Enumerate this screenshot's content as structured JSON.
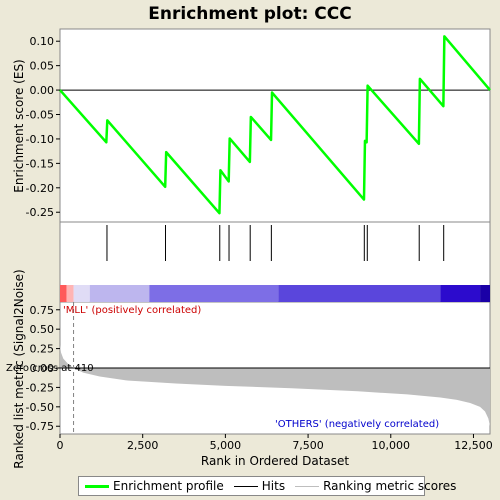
{
  "chart_data": {
    "type": "line",
    "title": "Enrichment plot: CCC",
    "xlabel": "Rank in Ordered Dataset",
    "top_ylabel": "Enrichment score (ES)",
    "bottom_ylabel": "Ranked list metric (Signal2Noise)",
    "x_range": [
      0,
      13000
    ],
    "x_ticks": [
      0,
      2500,
      5000,
      7500,
      10000,
      12500
    ],
    "x_tick_labels": [
      "0",
      "2,500",
      "5,000",
      "7,500",
      "10,000",
      "12,500"
    ],
    "es_range": [
      -0.27,
      0.125
    ],
    "es_ticks": [
      0.1,
      0.05,
      0.0,
      -0.05,
      -0.1,
      -0.15,
      -0.2,
      -0.25
    ],
    "es_tick_labels": [
      "0.10",
      "0.05",
      "0.00",
      "-0.05",
      "-0.10",
      "-0.15",
      "-0.20",
      "-0.25"
    ],
    "es_profile": {
      "x": [
        0,
        1400,
        1430,
        3180,
        3210,
        4820,
        4850,
        5100,
        5130,
        5740,
        5770,
        6380,
        6410,
        9190,
        9220,
        9270,
        9300,
        10850,
        10880,
        11590,
        11620,
        13000
      ],
      "y": [
        0.0,
        -0.107,
        -0.062,
        -0.198,
        -0.127,
        -0.252,
        -0.164,
        -0.187,
        -0.099,
        -0.147,
        -0.055,
        -0.102,
        -0.005,
        -0.224,
        -0.104,
        -0.107,
        0.009,
        -0.11,
        0.023,
        -0.033,
        0.11,
        0.0
      ]
    },
    "hits": [
      1420,
      3190,
      4830,
      5110,
      5750,
      6390,
      9200,
      9290,
      10860,
      11600
    ],
    "metric_range": [
      -0.85,
      0.85
    ],
    "metric_ticks": [
      0.75,
      0.5,
      0.25,
      0.0,
      -0.25,
      -0.5,
      -0.75
    ],
    "metric_tick_labels": [
      "0.75",
      "0.50",
      "0.25",
      "0.00",
      "-0.25",
      "-0.50",
      "-0.75"
    ],
    "metric_curve": {
      "x": [
        0,
        30,
        100,
        250,
        410,
        700,
        1200,
        2000,
        3500,
        5000,
        7000,
        9000,
        10500,
        11500,
        12000,
        12400,
        12700,
        12850,
        12950,
        13000
      ],
      "y": [
        0.3,
        0.2,
        0.12,
        0.05,
        0.0,
        -0.06,
        -0.11,
        -0.16,
        -0.2,
        -0.23,
        -0.26,
        -0.3,
        -0.34,
        -0.38,
        -0.41,
        -0.45,
        -0.5,
        -0.56,
        -0.65,
        -0.75
      ]
    },
    "zero_cross": 410,
    "annotations": {
      "positive": "'MLL' (positively correlated)",
      "negative": "'OTHERS' (negatively correlated)",
      "zero_cross": "Zero cross at 410"
    },
    "colors": {
      "es_line": "#00FF00",
      "hit_line": "#000000",
      "metric_fill": "#BEBEBE",
      "positive_text": "#CC0000",
      "negative_text": "#0000CC",
      "zero_line": "#808080"
    },
    "colorbar": [
      {
        "from": 0,
        "to": 200,
        "color": "#FF5A5A"
      },
      {
        "from": 200,
        "to": 410,
        "color": "#FFB4B4"
      },
      {
        "from": 410,
        "to": 900,
        "color": "#E0DCF6"
      },
      {
        "from": 900,
        "to": 2700,
        "color": "#BDB6EE"
      },
      {
        "from": 2700,
        "to": 6600,
        "color": "#7D6EE6"
      },
      {
        "from": 6600,
        "to": 11500,
        "color": "#5A46DC"
      },
      {
        "from": 11500,
        "to": 12700,
        "color": "#2C0BCD"
      },
      {
        "from": 12700,
        "to": 13000,
        "color": "#1A00A6"
      }
    ],
    "legend": [
      {
        "label": "Enrichment profile",
        "color": "#00FF00",
        "style": "thick"
      },
      {
        "label": "Hits",
        "color": "#000000",
        "style": "thin"
      },
      {
        "label": "Ranking metric scores",
        "color": "#BEBEBE",
        "style": "thin"
      }
    ]
  }
}
